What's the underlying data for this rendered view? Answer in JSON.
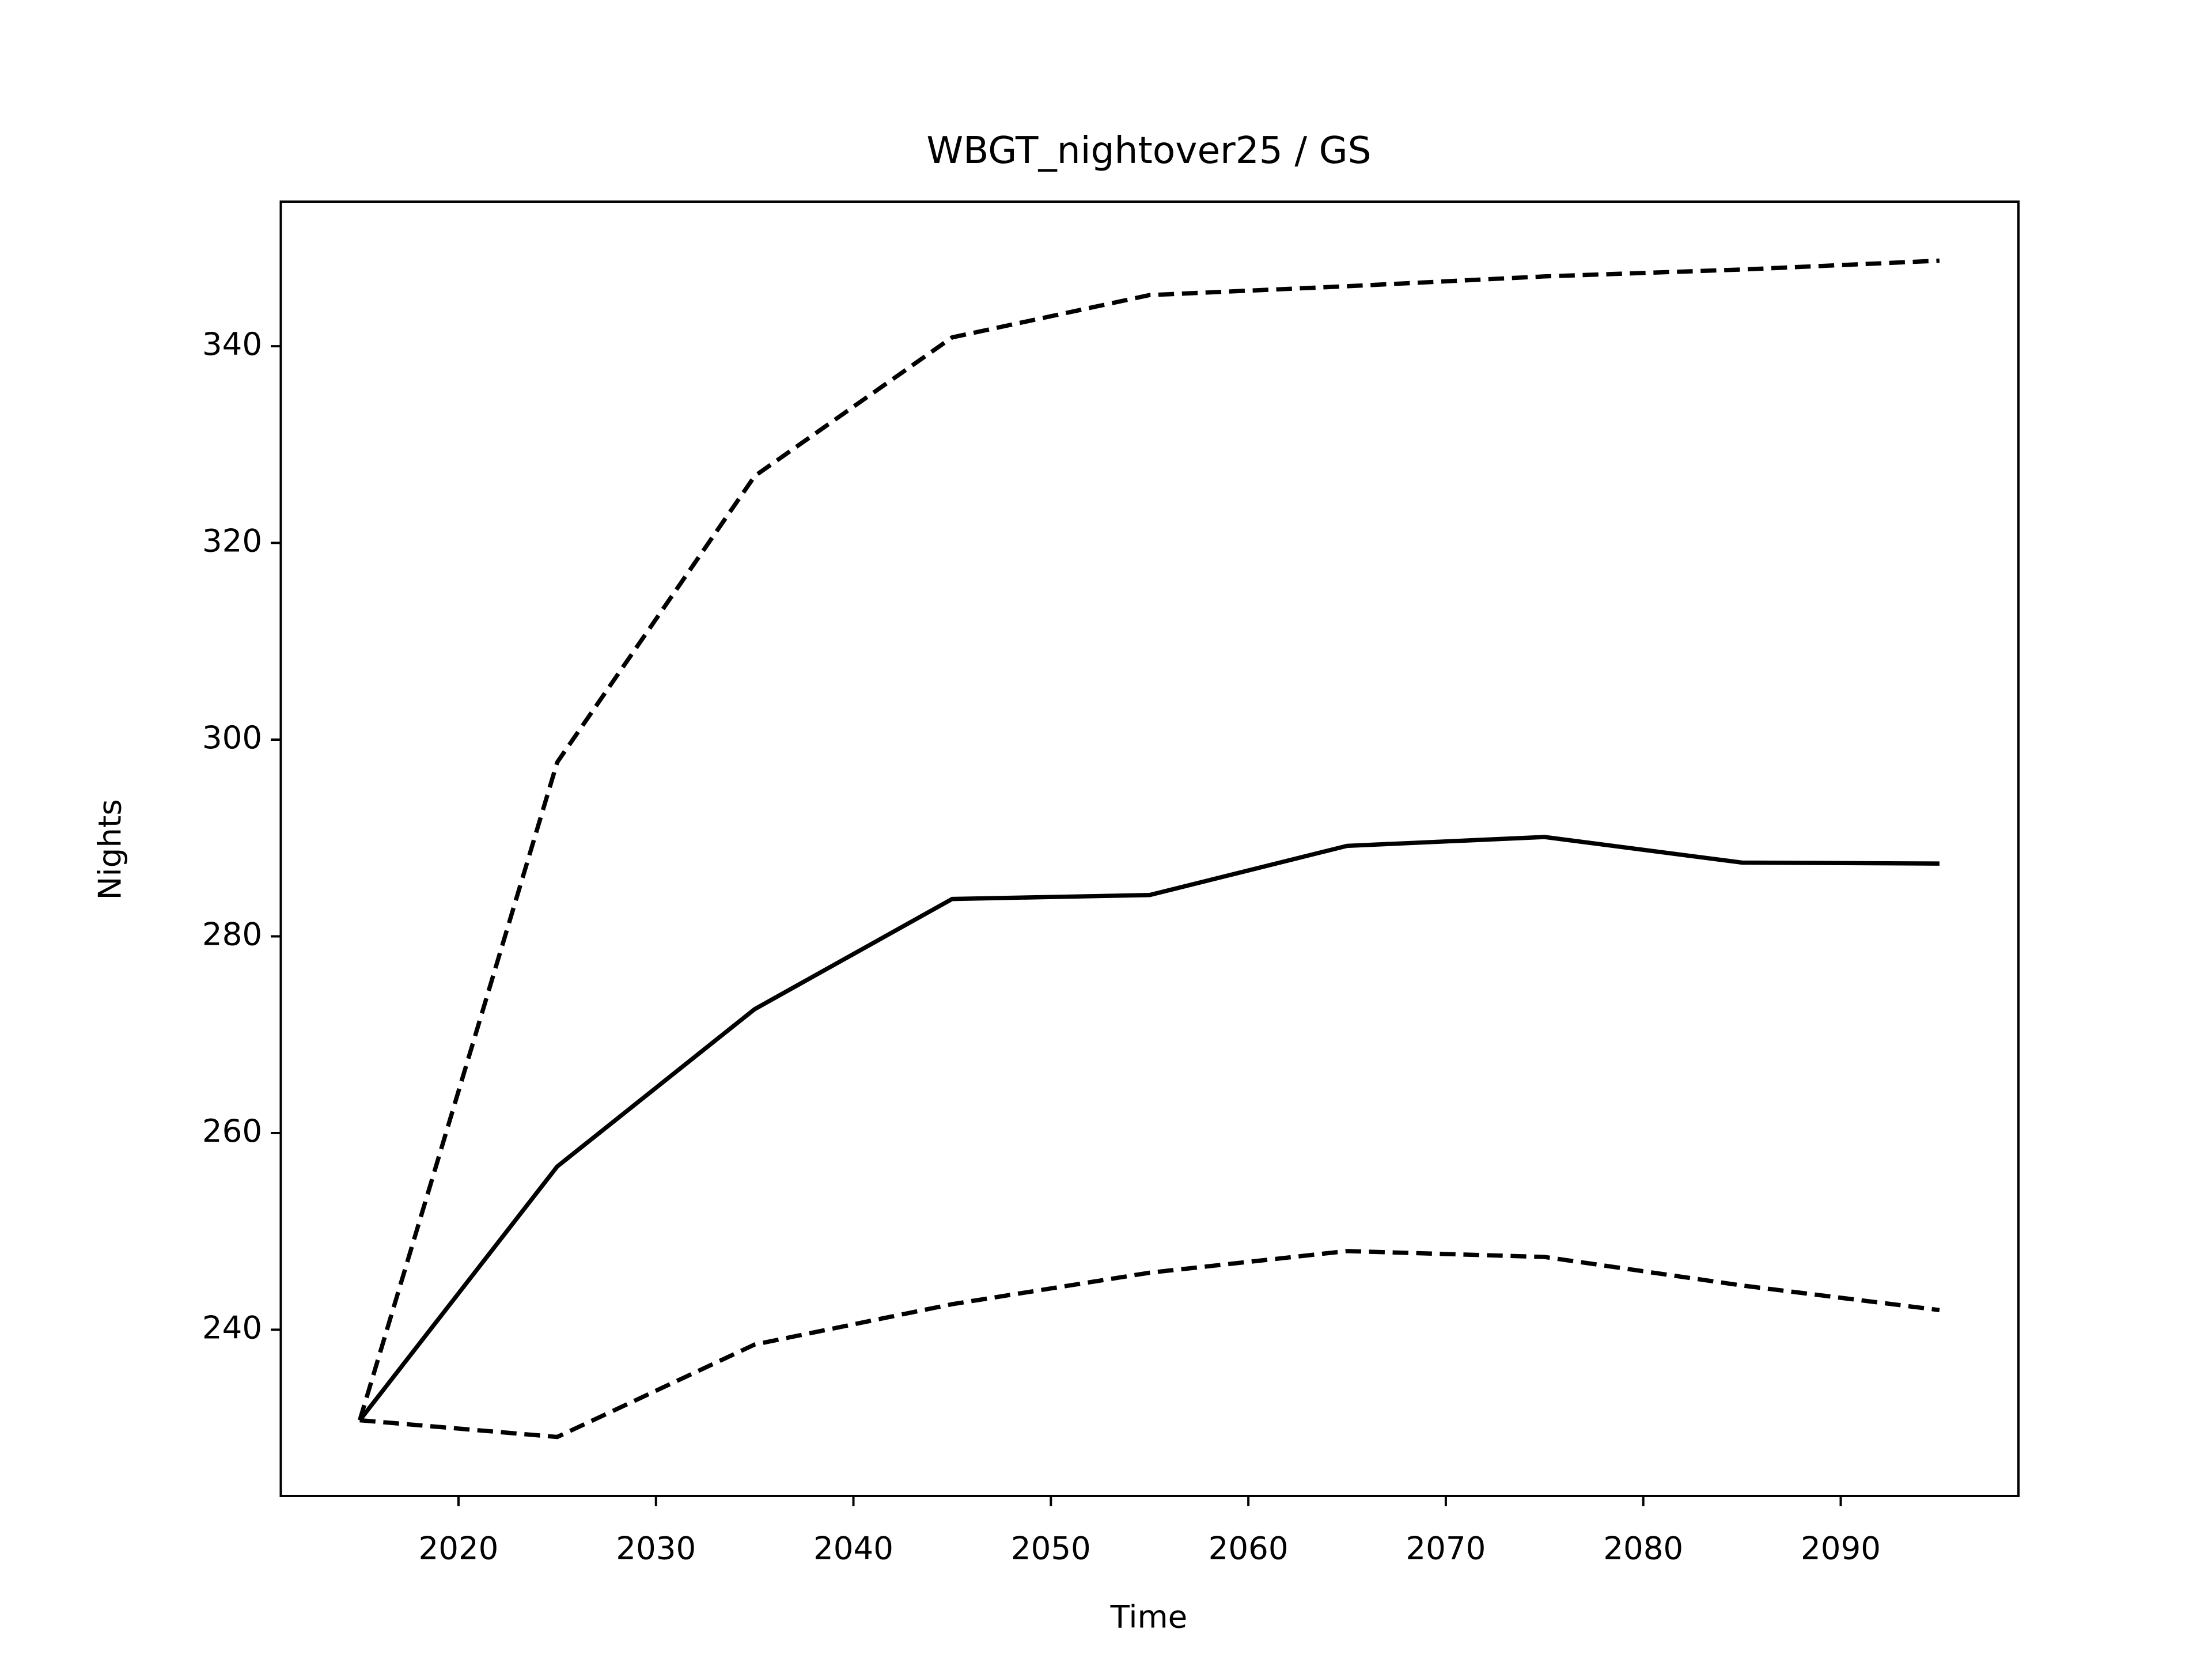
{
  "chart_data": {
    "type": "line",
    "title": "WBGT_nightover25 / GS",
    "x_label": "Time",
    "y_label": "Nights",
    "x": [
      2015,
      2025,
      2035,
      2045,
      2055,
      2065,
      2075,
      2085,
      2095
    ],
    "series": [
      {
        "color": "#000000",
        "style": "dashed",
        "values": [
          230.8,
          297.7,
          326.8,
          340.9,
          345.2,
          346.1,
          347.1,
          347.8,
          348.7
        ]
      },
      {
        "color": "#000000",
        "style": "solid",
        "values": [
          230.8,
          256.6,
          272.6,
          283.8,
          284.2,
          289.2,
          290.1,
          287.5,
          287.4
        ]
      },
      {
        "color": "#000000",
        "style": "dashed",
        "values": [
          230.8,
          229.1,
          238.5,
          242.6,
          245.8,
          248.0,
          247.4,
          244.5,
          242.0
        ]
      }
    ],
    "xlim": [
      2011,
      2099
    ],
    "ylim": [
      223.1,
      354.7
    ],
    "xticks": [
      2020,
      2030,
      2040,
      2050,
      2060,
      2070,
      2080,
      2090
    ],
    "yticks": [
      240,
      260,
      280,
      300,
      320,
      340
    ],
    "grid": false
  }
}
